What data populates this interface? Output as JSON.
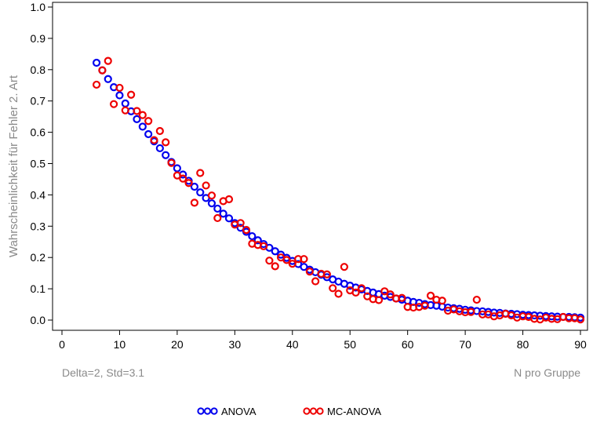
{
  "chart_data": {
    "type": "scatter",
    "title": "",
    "ylabel": "Wahrscheinlichkeit für Fehler 2. Art",
    "xlabel": "N pro Gruppe",
    "annotation": "Delta=2, Std=3.1",
    "xlim": [
      0,
      90
    ],
    "ylim": [
      0,
      1
    ],
    "xticks": [
      "0",
      "10",
      "20",
      "30",
      "40",
      "50",
      "60",
      "70",
      "80",
      "90"
    ],
    "yticks": [
      "0.0",
      "0.1",
      "0.2",
      "0.3",
      "0.4",
      "0.5",
      "0.6",
      "0.7",
      "0.8",
      "0.9",
      "1.0"
    ],
    "grid": false,
    "legend_position": "bottom-center",
    "x": [
      6,
      7,
      8,
      9,
      10,
      11,
      12,
      13,
      14,
      15,
      16,
      17,
      18,
      19,
      20,
      21,
      22,
      23,
      24,
      25,
      26,
      27,
      28,
      29,
      30,
      31,
      32,
      33,
      34,
      35,
      36,
      37,
      38,
      39,
      40,
      41,
      42,
      43,
      44,
      45,
      46,
      47,
      48,
      49,
      50,
      51,
      52,
      53,
      54,
      55,
      56,
      57,
      58,
      59,
      60,
      61,
      62,
      63,
      64,
      65,
      66,
      67,
      68,
      69,
      70,
      71,
      72,
      73,
      74,
      75,
      76,
      77,
      78,
      79,
      80,
      81,
      82,
      83,
      84,
      85,
      86,
      87,
      88,
      89,
      90
    ],
    "series": [
      {
        "name": "ANOVA",
        "color": "#0000ee",
        "values": [
          0.822,
          0.798,
          0.77,
          0.744,
          0.718,
          0.692,
          0.667,
          0.642,
          0.618,
          0.594,
          0.571,
          0.549,
          0.527,
          0.505,
          0.485,
          0.465,
          0.445,
          0.426,
          0.408,
          0.39,
          0.373,
          0.356,
          0.34,
          0.325,
          0.31,
          0.295,
          0.282,
          0.268,
          0.255,
          0.243,
          0.231,
          0.22,
          0.209,
          0.199,
          0.189,
          0.179,
          0.17,
          0.161,
          0.153,
          0.145,
          0.137,
          0.13,
          0.123,
          0.116,
          0.11,
          0.104,
          0.098,
          0.093,
          0.088,
          0.083,
          0.078,
          0.074,
          0.069,
          0.065,
          0.062,
          0.058,
          0.055,
          0.051,
          0.048,
          0.046,
          0.043,
          0.04,
          0.038,
          0.036,
          0.033,
          0.031,
          0.029,
          0.028,
          0.026,
          0.024,
          0.023,
          0.021,
          0.02,
          0.019,
          0.017,
          0.016,
          0.015,
          0.014,
          0.013,
          0.012,
          0.011,
          0.01,
          0.01,
          0.009,
          0.008
        ]
      },
      {
        "name": "MC-ANOVA",
        "color": "#ee0000",
        "values": [
          0.752,
          0.798,
          0.828,
          0.69,
          0.742,
          0.67,
          0.72,
          0.668,
          0.655,
          0.636,
          0.575,
          0.604,
          0.568,
          0.502,
          0.462,
          0.452,
          0.438,
          0.375,
          0.47,
          0.43,
          0.398,
          0.326,
          0.38,
          0.386,
          0.305,
          0.31,
          0.288,
          0.244,
          0.24,
          0.236,
          0.19,
          0.172,
          0.2,
          0.192,
          0.18,
          0.195,
          0.195,
          0.155,
          0.124,
          0.148,
          0.146,
          0.102,
          0.084,
          0.17,
          0.095,
          0.088,
          0.102,
          0.076,
          0.067,
          0.064,
          0.092,
          0.082,
          0.069,
          0.071,
          0.042,
          0.04,
          0.042,
          0.046,
          0.078,
          0.065,
          0.062,
          0.03,
          0.034,
          0.028,
          0.025,
          0.026,
          0.065,
          0.018,
          0.018,
          0.012,
          0.015,
          0.02,
          0.015,
          0.008,
          0.012,
          0.01,
          0.004,
          0.002,
          0.008,
          0.004,
          0.003,
          0.01,
          0.006,
          0.006,
          0.002
        ]
      }
    ]
  }
}
